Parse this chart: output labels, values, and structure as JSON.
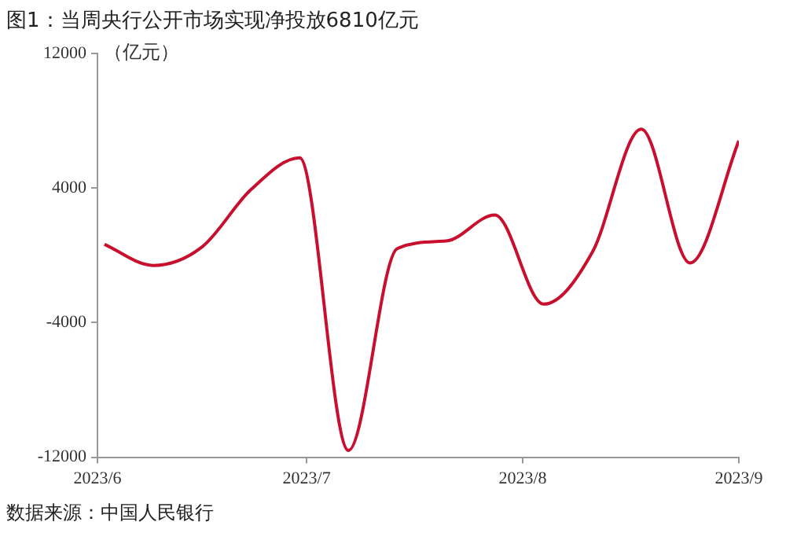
{
  "chart_data": {
    "type": "line",
    "title": "图1：当周央行公开市场实现净投放6810亿元",
    "ylabel": "（亿元）",
    "x": [
      "2023-06-02",
      "2023-06-09",
      "2023-06-16",
      "2023-06-23",
      "2023-06-30",
      "2023-07-07",
      "2023-07-14",
      "2023-07-21",
      "2023-07-28",
      "2023-08-04",
      "2023-08-11",
      "2023-08-18",
      "2023-08-25",
      "2023-09-01"
    ],
    "series": [
      {
        "color": "#c8102e",
        "values": [
          650,
          -600,
          500,
          3900,
          5800,
          -11600,
          400,
          850,
          2400,
          -2900,
          200,
          7500,
          -450,
          6810
        ]
      }
    ],
    "xlim": [
      "2023-06-01",
      "2023-09-01"
    ],
    "xticks": [
      {
        "value": "2023-06-01",
        "label": "2023/6"
      },
      {
        "value": "2023-07-01",
        "label": "2023/7"
      },
      {
        "value": "2023-08-01",
        "label": "2023/8"
      },
      {
        "value": "2023-09-01",
        "label": "2023/9"
      }
    ],
    "ylim": [
      -12000,
      12000
    ],
    "yticks": [
      -12000,
      -4000,
      4000,
      12000
    ],
    "grid": false,
    "legend": false,
    "marker": "none",
    "line_style": "solid",
    "annotations": [
      "数据来源：中国人民银行"
    ]
  }
}
